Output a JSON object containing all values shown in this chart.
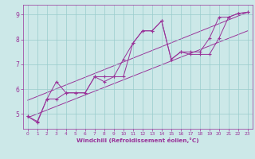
{
  "xlabel": "Windchill (Refroidissement éolien,°C)",
  "bg_color": "#cce8e8",
  "line_color": "#993399",
  "grid_color": "#99cccc",
  "axis_color": "#993399",
  "tick_color": "#993399",
  "xlim": [
    -0.5,
    23.5
  ],
  "ylim": [
    4.4,
    9.4
  ],
  "yticks": [
    5,
    6,
    7,
    8,
    9
  ],
  "xticks": [
    0,
    1,
    2,
    3,
    4,
    5,
    6,
    7,
    8,
    9,
    10,
    11,
    12,
    13,
    14,
    15,
    16,
    17,
    18,
    19,
    20,
    21,
    22,
    23
  ],
  "series1_x": [
    0,
    1,
    2,
    3,
    4,
    5,
    6,
    7,
    8,
    9,
    10,
    11,
    12,
    13,
    14,
    15,
    16,
    17,
    18,
    19,
    20,
    21,
    22,
    23
  ],
  "series1_y": [
    4.9,
    4.7,
    5.6,
    6.3,
    5.85,
    5.85,
    5.85,
    6.5,
    6.5,
    6.5,
    7.2,
    7.85,
    8.35,
    8.35,
    8.75,
    7.2,
    7.5,
    7.5,
    7.5,
    8.05,
    8.9,
    8.9,
    9.05,
    9.1
  ],
  "series2_x": [
    0,
    1,
    2,
    3,
    4,
    5,
    6,
    7,
    8,
    9,
    10,
    11,
    12,
    13,
    14,
    15,
    16,
    17,
    18,
    19,
    20,
    21,
    22,
    23
  ],
  "series2_y": [
    4.9,
    4.65,
    5.6,
    5.6,
    5.85,
    5.85,
    5.85,
    6.5,
    6.3,
    6.5,
    6.5,
    7.85,
    8.35,
    8.35,
    8.75,
    7.2,
    7.5,
    7.4,
    7.4,
    7.4,
    8.05,
    8.9,
    9.05,
    9.1
  ],
  "trend1_x": [
    0,
    23
  ],
  "trend1_y": [
    5.55,
    9.1
  ],
  "trend2_x": [
    0,
    23
  ],
  "trend2_y": [
    4.85,
    8.35
  ]
}
